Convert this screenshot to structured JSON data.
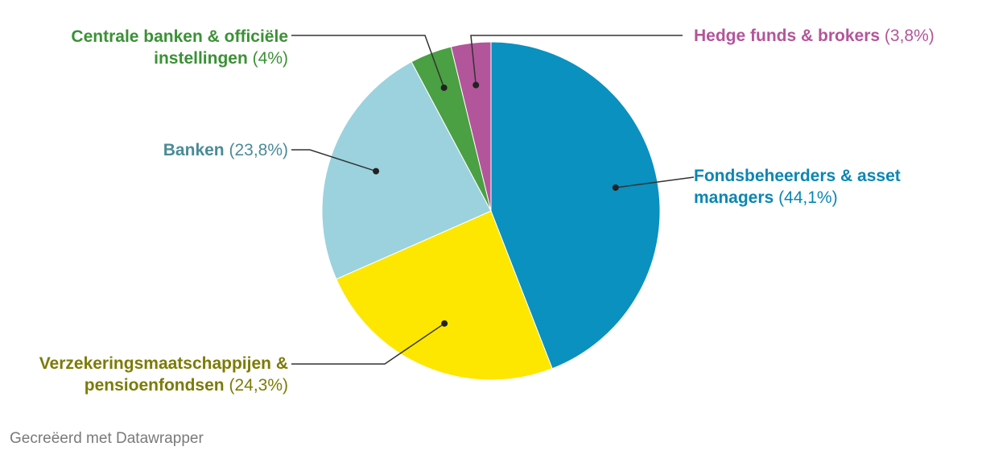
{
  "chart_data": {
    "type": "pie",
    "slices": [
      {
        "label_lines": [
          "Fondsbeheerders & asset",
          "managers"
        ],
        "value": 44.1,
        "value_text": "(44,1%)",
        "color": "#0a91bf",
        "label_color": "#0a86b4"
      },
      {
        "label_lines": [
          "Verzekeringsmaatschappijen &",
          "pensioenfondsen"
        ],
        "value": 24.3,
        "value_text": "(24,3%)",
        "color": "#fde600",
        "label_color": "#7b7b06"
      },
      {
        "label_lines": [
          "Banken"
        ],
        "value": 23.8,
        "value_text": "(23,8%)",
        "color": "#9bd2de",
        "label_color": "#4a8b98"
      },
      {
        "label_lines": [
          "Centrale banken & officiële",
          "instellingen"
        ],
        "value": 4.0,
        "value_text": "(4%)",
        "color": "#4aa043",
        "label_color": "#3a9135"
      },
      {
        "label_lines": [
          "Hedge funds & brokers"
        ],
        "value": 3.8,
        "value_text": "(3,8%)",
        "color": "#b3559a",
        "label_color": "#b3559a"
      }
    ]
  },
  "footer": "Gecreëerd met Datawrapper"
}
